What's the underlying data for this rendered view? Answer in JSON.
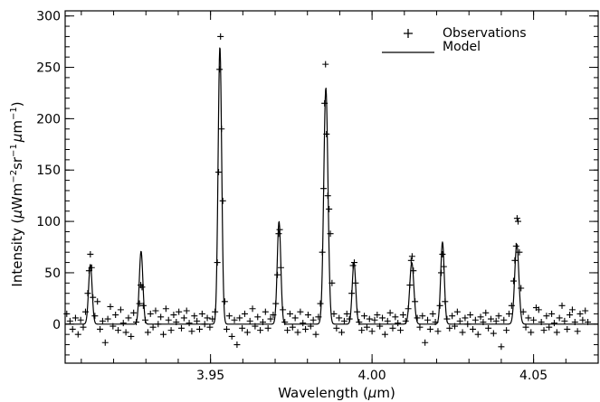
{
  "chart_data": {
    "type": "line",
    "title": "",
    "xlabel": {
      "pre": "Wavelength (",
      "mu": "μ",
      "post": "m)"
    },
    "ylabel": {
      "pre": "Intensity (",
      "mu1": "μ",
      "unit1": "Wm",
      "exp1": "−2",
      "unit2": "sr",
      "exp2": "−1",
      "mu2": "μ",
      "unit3": "m",
      "exp3": "−1",
      "post": ")"
    },
    "xlim": [
      3.905,
      4.07
    ],
    "ylim": [
      -38,
      305
    ],
    "x_ticks": [
      {
        "value": 3.95,
        "label": "3.95"
      },
      {
        "value": 4.0,
        "label": "4.00"
      },
      {
        "value": 4.05,
        "label": "4.05"
      }
    ],
    "x_minor_step": 0.01,
    "y_ticks": [
      {
        "value": 0,
        "label": "0"
      },
      {
        "value": 50,
        "label": "50"
      },
      {
        "value": 100,
        "label": "100"
      },
      {
        "value": 150,
        "label": "150"
      },
      {
        "value": 200,
        "label": "200"
      },
      {
        "value": 250,
        "label": "250"
      },
      {
        "value": 300,
        "label": "300"
      }
    ],
    "y_minor_step": 10,
    "grid": false,
    "legend": {
      "position": "top-right",
      "entries": [
        {
          "label": "Observations",
          "marker": "plus"
        },
        {
          "label": "Model",
          "marker": "line"
        }
      ]
    },
    "series": [
      {
        "name": "Model",
        "style": "line",
        "baseline": 0,
        "peaks": [
          {
            "center": 3.9128,
            "height": 58,
            "sigma": 0.00055
          },
          {
            "center": 3.9285,
            "height": 71,
            "sigma": 0.00055
          },
          {
            "center": 3.9529,
            "height": 270,
            "sigma": 0.00055
          },
          {
            "center": 3.9712,
            "height": 100,
            "sigma": 0.00055
          },
          {
            "center": 3.9857,
            "height": 230,
            "sigma": 0.00065
          },
          {
            "center": 3.9944,
            "height": 60,
            "sigma": 0.00055
          },
          {
            "center": 4.0123,
            "height": 60,
            "sigma": 0.00065
          },
          {
            "center": 4.0218,
            "height": 80,
            "sigma": 0.00055
          },
          {
            "center": 4.0448,
            "height": 78,
            "sigma": 0.00065
          }
        ]
      },
      {
        "name": "Observations",
        "style": "plus",
        "points": [
          [
            3.9055,
            10
          ],
          [
            3.9065,
            3
          ],
          [
            3.9073,
            -5
          ],
          [
            3.9082,
            6
          ],
          [
            3.909,
            -10
          ],
          [
            3.9098,
            4
          ],
          [
            3.9106,
            -3
          ],
          [
            3.9113,
            12
          ],
          [
            3.912,
            30
          ],
          [
            3.9124,
            52
          ],
          [
            3.9128,
            68
          ],
          [
            3.9132,
            55
          ],
          [
            3.9136,
            26
          ],
          [
            3.9142,
            8
          ],
          [
            3.915,
            22
          ],
          [
            3.9158,
            -5
          ],
          [
            3.9166,
            3
          ],
          [
            3.9174,
            -18
          ],
          [
            3.9182,
            5
          ],
          [
            3.919,
            17
          ],
          [
            3.9198,
            -2
          ],
          [
            3.9206,
            9
          ],
          [
            3.9214,
            -6
          ],
          [
            3.9222,
            14
          ],
          [
            3.923,
            1
          ],
          [
            3.9238,
            -8
          ],
          [
            3.9246,
            6
          ],
          [
            3.9254,
            -12
          ],
          [
            3.9262,
            11
          ],
          [
            3.927,
            2
          ],
          [
            3.928,
            20
          ],
          [
            3.9284,
            38
          ],
          [
            3.9288,
            36
          ],
          [
            3.9292,
            18
          ],
          [
            3.9298,
            4
          ],
          [
            3.9306,
            -8
          ],
          [
            3.9314,
            10
          ],
          [
            3.9322,
            -3
          ],
          [
            3.933,
            13
          ],
          [
            3.9338,
            0
          ],
          [
            3.9346,
            7
          ],
          [
            3.9354,
            -10
          ],
          [
            3.9362,
            15
          ],
          [
            3.937,
            4
          ],
          [
            3.9378,
            -6
          ],
          [
            3.9386,
            9
          ],
          [
            3.9394,
            2
          ],
          [
            3.9402,
            12
          ],
          [
            3.941,
            -4
          ],
          [
            3.9418,
            6
          ],
          [
            3.9426,
            13
          ],
          [
            3.9434,
            1
          ],
          [
            3.9442,
            -7
          ],
          [
            3.945,
            8
          ],
          [
            3.9458,
            3
          ],
          [
            3.9466,
            -5
          ],
          [
            3.9474,
            10
          ],
          [
            3.9482,
            0
          ],
          [
            3.949,
            6
          ],
          [
            3.9498,
            -3
          ],
          [
            3.9506,
            5
          ],
          [
            3.9514,
            12
          ],
          [
            3.9521,
            60
          ],
          [
            3.9525,
            148
          ],
          [
            3.9528,
            248
          ],
          [
            3.9531,
            280
          ],
          [
            3.9534,
            190
          ],
          [
            3.9538,
            120
          ],
          [
            3.9544,
            22
          ],
          [
            3.955,
            -5
          ],
          [
            3.9558,
            8
          ],
          [
            3.9566,
            -12
          ],
          [
            3.9574,
            4
          ],
          [
            3.9582,
            -20
          ],
          [
            3.959,
            6
          ],
          [
            3.9598,
            -4
          ],
          [
            3.9606,
            10
          ],
          [
            3.9614,
            -8
          ],
          [
            3.9622,
            3
          ],
          [
            3.963,
            15
          ],
          [
            3.9638,
            -2
          ],
          [
            3.9646,
            7
          ],
          [
            3.9654,
            -6
          ],
          [
            3.9662,
            2
          ],
          [
            3.967,
            12
          ],
          [
            3.9678,
            -4
          ],
          [
            3.9686,
            5
          ],
          [
            3.9694,
            9
          ],
          [
            3.9702,
            20
          ],
          [
            3.9707,
            48
          ],
          [
            3.9711,
            88
          ],
          [
            3.9714,
            92
          ],
          [
            3.9718,
            55
          ],
          [
            3.9724,
            14
          ],
          [
            3.973,
            2
          ],
          [
            3.9738,
            -6
          ],
          [
            3.9746,
            10
          ],
          [
            3.9754,
            -3
          ],
          [
            3.9762,
            6
          ],
          [
            3.977,
            -8
          ],
          [
            3.9778,
            12
          ],
          [
            3.9786,
            1
          ],
          [
            3.9794,
            -5
          ],
          [
            3.9802,
            9
          ],
          [
            3.981,
            -2
          ],
          [
            3.9818,
            4
          ],
          [
            3.9826,
            -10
          ],
          [
            3.9834,
            7
          ],
          [
            3.984,
            20
          ],
          [
            3.9846,
            70
          ],
          [
            3.985,
            132
          ],
          [
            3.9853,
            215
          ],
          [
            3.9856,
            253
          ],
          [
            3.9859,
            185
          ],
          [
            3.9863,
            125
          ],
          [
            3.9867,
            112
          ],
          [
            3.9871,
            88
          ],
          [
            3.9876,
            40
          ],
          [
            3.9882,
            10
          ],
          [
            3.989,
            -4
          ],
          [
            3.9898,
            6
          ],
          [
            3.9906,
            -8
          ],
          [
            3.9914,
            3
          ],
          [
            3.9922,
            10
          ],
          [
            3.993,
            5
          ],
          [
            3.9937,
            30
          ],
          [
            3.9941,
            57
          ],
          [
            3.9945,
            60
          ],
          [
            3.9949,
            40
          ],
          [
            3.9954,
            12
          ],
          [
            3.996,
            2
          ],
          [
            3.9968,
            -6
          ],
          [
            3.9976,
            8
          ],
          [
            3.9984,
            -3
          ],
          [
            3.9992,
            5
          ],
          [
            4.0,
            -7
          ],
          [
            4.0008,
            4
          ],
          [
            4.0016,
            9
          ],
          [
            4.0024,
            -2
          ],
          [
            4.0032,
            6
          ],
          [
            4.004,
            -10
          ],
          [
            4.0048,
            3
          ],
          [
            4.0056,
            11
          ],
          [
            4.0064,
            -4
          ],
          [
            4.0072,
            7
          ],
          [
            4.008,
            1
          ],
          [
            4.0088,
            -6
          ],
          [
            4.0096,
            9
          ],
          [
            4.0104,
            3
          ],
          [
            4.0112,
            15
          ],
          [
            4.0117,
            38
          ],
          [
            4.0121,
            62
          ],
          [
            4.0124,
            66
          ],
          [
            4.0128,
            52
          ],
          [
            4.0133,
            22
          ],
          [
            4.014,
            6
          ],
          [
            4.0148,
            -3
          ],
          [
            4.0156,
            8
          ],
          [
            4.0164,
            -18
          ],
          [
            4.0172,
            4
          ],
          [
            4.018,
            -5
          ],
          [
            4.0188,
            10
          ],
          [
            4.0196,
            2
          ],
          [
            4.0204,
            -7
          ],
          [
            4.021,
            18
          ],
          [
            4.0214,
            50
          ],
          [
            4.0218,
            68
          ],
          [
            4.0222,
            56
          ],
          [
            4.0226,
            22
          ],
          [
            4.0232,
            5
          ],
          [
            4.024,
            -4
          ],
          [
            4.0248,
            8
          ],
          [
            4.0256,
            -2
          ],
          [
            4.0264,
            12
          ],
          [
            4.0272,
            3
          ],
          [
            4.028,
            -8
          ],
          [
            4.0288,
            6
          ],
          [
            4.0296,
            0
          ],
          [
            4.0304,
            9
          ],
          [
            4.0312,
            -5
          ],
          [
            4.032,
            4
          ],
          [
            4.0328,
            -10
          ],
          [
            4.0336,
            7
          ],
          [
            4.0344,
            2
          ],
          [
            4.0352,
            11
          ],
          [
            4.036,
            -4
          ],
          [
            4.0368,
            5
          ],
          [
            4.0376,
            -9
          ],
          [
            4.0384,
            3
          ],
          [
            4.0392,
            8
          ],
          [
            4.04,
            -22
          ],
          [
            4.0408,
            4
          ],
          [
            4.0416,
            -6
          ],
          [
            4.0424,
            10
          ],
          [
            4.0432,
            18
          ],
          [
            4.0438,
            42
          ],
          [
            4.0442,
            62
          ],
          [
            4.0446,
            76
          ],
          [
            4.0449,
            103
          ],
          [
            4.0452,
            100
          ],
          [
            4.0456,
            70
          ],
          [
            4.0461,
            35
          ],
          [
            4.0468,
            12
          ],
          [
            4.0476,
            -3
          ],
          [
            4.0484,
            6
          ],
          [
            4.0492,
            -8
          ],
          [
            4.05,
            4
          ],
          [
            4.0508,
            16
          ],
          [
            4.0516,
            14
          ],
          [
            4.0524,
            2
          ],
          [
            4.0532,
            -6
          ],
          [
            4.054,
            8
          ],
          [
            4.0548,
            -3
          ],
          [
            4.0556,
            10
          ],
          [
            4.0564,
            1
          ],
          [
            4.0572,
            -8
          ],
          [
            4.058,
            6
          ],
          [
            4.0588,
            18
          ],
          [
            4.0596,
            3
          ],
          [
            4.0604,
            -5
          ],
          [
            4.0612,
            9
          ],
          [
            4.062,
            14
          ],
          [
            4.0628,
            2
          ],
          [
            4.0636,
            -7
          ],
          [
            4.0644,
            10
          ],
          [
            4.0652,
            4
          ],
          [
            4.066,
            13
          ],
          [
            4.0668,
            2
          ]
        ]
      }
    ]
  }
}
